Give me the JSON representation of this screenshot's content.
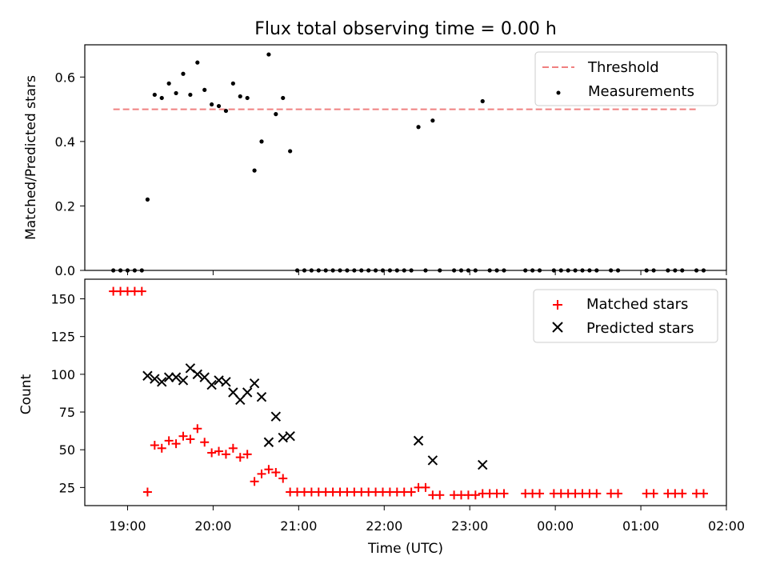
{
  "title": "Flux total observing time = 0.00 h",
  "x_axis": {
    "label": "Time (UTC)",
    "ticks": [
      {
        "label": "19:00",
        "hours": 19
      },
      {
        "label": "20:00",
        "hours": 20
      },
      {
        "label": "21:00",
        "hours": 21
      },
      {
        "label": "22:00",
        "hours": 22
      },
      {
        "label": "23:00",
        "hours": 23
      },
      {
        "label": "00:00",
        "hours": 24
      },
      {
        "label": "01:00",
        "hours": 25
      },
      {
        "label": "02:00",
        "hours": 26
      }
    ],
    "range_hours": [
      18.5,
      26.0
    ]
  },
  "chart_data": [
    {
      "type": "scatter",
      "ylabel": "Matched/Predicted stars",
      "ylim": [
        0,
        0.7
      ],
      "yticks": [
        "0.0",
        "0.2",
        "0.4",
        "0.6"
      ],
      "legend": {
        "placement": "top-right"
      },
      "threshold": {
        "name": "Threshold",
        "value": 0.5,
        "x_start": "18:50",
        "x_end": "01:40",
        "color": "#f08080",
        "style": "dashed"
      },
      "series": [
        {
          "name": "Measurements",
          "color": "#000000",
          "marker": "dot",
          "points": [
            [
              "18:50",
              0
            ],
            [
              "18:55",
              0
            ],
            [
              "19:00",
              0
            ],
            [
              "19:05",
              0
            ],
            [
              "19:10",
              0
            ],
            [
              "19:14",
              0.22
            ],
            [
              "19:19",
              0.545
            ],
            [
              "19:24",
              0.535
            ],
            [
              "19:29",
              0.58
            ],
            [
              "19:34",
              0.55
            ],
            [
              "19:39",
              0.61
            ],
            [
              "19:44",
              0.545
            ],
            [
              "19:49",
              0.645
            ],
            [
              "19:54",
              0.56
            ],
            [
              "19:59",
              0.515
            ],
            [
              "20:04",
              0.51
            ],
            [
              "20:09",
              0.495
            ],
            [
              "20:14",
              0.58
            ],
            [
              "20:19",
              0.54
            ],
            [
              "20:24",
              0.535
            ],
            [
              "20:29",
              0.31
            ],
            [
              "20:34",
              0.4
            ],
            [
              "20:39",
              0.67
            ],
            [
              "20:44",
              0.485
            ],
            [
              "20:49",
              0.535
            ],
            [
              "20:54",
              0.37
            ],
            [
              "20:59",
              0
            ],
            [
              "21:04",
              0
            ],
            [
              "21:09",
              0
            ],
            [
              "21:14",
              0
            ],
            [
              "21:19",
              0
            ],
            [
              "21:24",
              0
            ],
            [
              "21:29",
              0
            ],
            [
              "21:34",
              0
            ],
            [
              "21:39",
              0
            ],
            [
              "21:44",
              0
            ],
            [
              "21:49",
              0
            ],
            [
              "21:54",
              0
            ],
            [
              "21:59",
              0
            ],
            [
              "22:04",
              0
            ],
            [
              "22:09",
              0
            ],
            [
              "22:14",
              0
            ],
            [
              "22:19",
              0
            ],
            [
              "22:24",
              0.445
            ],
            [
              "22:29",
              0
            ],
            [
              "22:34",
              0.465
            ],
            [
              "22:39",
              0
            ],
            [
              "22:49",
              0
            ],
            [
              "22:54",
              0
            ],
            [
              "22:59",
              0
            ],
            [
              "23:04",
              0
            ],
            [
              "23:09",
              0.525
            ],
            [
              "23:14",
              0
            ],
            [
              "23:19",
              0
            ],
            [
              "23:24",
              0
            ],
            [
              "23:39",
              0
            ],
            [
              "23:44",
              0
            ],
            [
              "23:49",
              0
            ],
            [
              "23:59",
              0
            ],
            [
              "00:04",
              0
            ],
            [
              "00:09",
              0
            ],
            [
              "00:14",
              0
            ],
            [
              "00:19",
              0
            ],
            [
              "00:24",
              0
            ],
            [
              "00:29",
              0
            ],
            [
              "00:39",
              0
            ],
            [
              "00:44",
              0
            ],
            [
              "01:04",
              0
            ],
            [
              "01:09",
              0
            ],
            [
              "01:19",
              0
            ],
            [
              "01:24",
              0
            ],
            [
              "01:29",
              0
            ],
            [
              "01:39",
              0
            ],
            [
              "01:44",
              0
            ]
          ]
        }
      ]
    },
    {
      "type": "scatter",
      "ylabel": "Count",
      "ylim": [
        13,
        163
      ],
      "yticks": [
        "25",
        "50",
        "75",
        "100",
        "125",
        "150"
      ],
      "legend": {
        "placement": "top-right"
      },
      "series": [
        {
          "name": "Matched stars",
          "color": "#ff0000",
          "marker": "plus",
          "points": [
            [
              "18:50",
              155
            ],
            [
              "18:55",
              155
            ],
            [
              "19:00",
              155
            ],
            [
              "19:05",
              155
            ],
            [
              "19:10",
              155
            ],
            [
              "19:14",
              22
            ],
            [
              "19:19",
              53
            ],
            [
              "19:24",
              51
            ],
            [
              "19:29",
              56
            ],
            [
              "19:34",
              54
            ],
            [
              "19:39",
              59
            ],
            [
              "19:44",
              57
            ],
            [
              "19:49",
              64
            ],
            [
              "19:54",
              55
            ],
            [
              "19:59",
              48
            ],
            [
              "20:04",
              49
            ],
            [
              "20:09",
              47
            ],
            [
              "20:14",
              51
            ],
            [
              "20:19",
              45
            ],
            [
              "20:24",
              47
            ],
            [
              "20:29",
              29
            ],
            [
              "20:34",
              34
            ],
            [
              "20:39",
              37
            ],
            [
              "20:44",
              35
            ],
            [
              "20:49",
              31
            ],
            [
              "20:54",
              22
            ],
            [
              "20:59",
              22
            ],
            [
              "21:04",
              22
            ],
            [
              "21:09",
              22
            ],
            [
              "21:14",
              22
            ],
            [
              "21:19",
              22
            ],
            [
              "21:24",
              22
            ],
            [
              "21:29",
              22
            ],
            [
              "21:34",
              22
            ],
            [
              "21:39",
              22
            ],
            [
              "21:44",
              22
            ],
            [
              "21:49",
              22
            ],
            [
              "21:54",
              22
            ],
            [
              "21:59",
              22
            ],
            [
              "22:04",
              22
            ],
            [
              "22:09",
              22
            ],
            [
              "22:14",
              22
            ],
            [
              "22:19",
              22
            ],
            [
              "22:24",
              25
            ],
            [
              "22:29",
              25
            ],
            [
              "22:34",
              20
            ],
            [
              "22:39",
              20
            ],
            [
              "22:49",
              20
            ],
            [
              "22:54",
              20
            ],
            [
              "22:59",
              20
            ],
            [
              "23:04",
              20
            ],
            [
              "23:09",
              21
            ],
            [
              "23:14",
              21
            ],
            [
              "23:19",
              21
            ],
            [
              "23:24",
              21
            ],
            [
              "23:39",
              21
            ],
            [
              "23:44",
              21
            ],
            [
              "23:49",
              21
            ],
            [
              "23:59",
              21
            ],
            [
              "00:04",
              21
            ],
            [
              "00:09",
              21
            ],
            [
              "00:14",
              21
            ],
            [
              "00:19",
              21
            ],
            [
              "00:24",
              21
            ],
            [
              "00:29",
              21
            ],
            [
              "00:39",
              21
            ],
            [
              "00:44",
              21
            ],
            [
              "01:04",
              21
            ],
            [
              "01:09",
              21
            ],
            [
              "01:19",
              21
            ],
            [
              "01:24",
              21
            ],
            [
              "01:29",
              21
            ],
            [
              "01:39",
              21
            ],
            [
              "01:44",
              21
            ]
          ]
        },
        {
          "name": "Predicted stars",
          "color": "#000000",
          "marker": "x",
          "points": [
            [
              "19:14",
              99
            ],
            [
              "19:19",
              97
            ],
            [
              "19:24",
              95
            ],
            [
              "19:29",
              98
            ],
            [
              "19:34",
              98
            ],
            [
              "19:39",
              96
            ],
            [
              "19:44",
              104
            ],
            [
              "19:49",
              100
            ],
            [
              "19:54",
              98
            ],
            [
              "19:59",
              93
            ],
            [
              "20:04",
              96
            ],
            [
              "20:09",
              95
            ],
            [
              "20:14",
              88
            ],
            [
              "20:19",
              83
            ],
            [
              "20:24",
              88
            ],
            [
              "20:29",
              94
            ],
            [
              "20:34",
              85
            ],
            [
              "20:39",
              55
            ],
            [
              "20:44",
              72
            ],
            [
              "20:49",
              58
            ],
            [
              "20:54",
              59
            ],
            [
              "22:24",
              56
            ],
            [
              "22:34",
              43
            ],
            [
              "23:09",
              40
            ]
          ]
        }
      ]
    }
  ]
}
